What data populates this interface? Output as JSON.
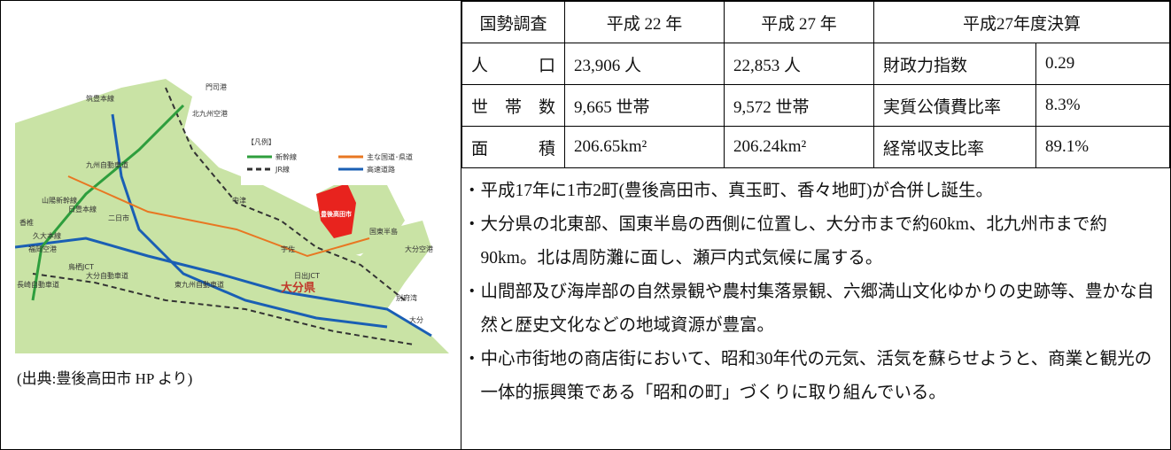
{
  "map": {
    "labels": [
      "大分県",
      "豊後高田市",
      "国東半島",
      "大分空港",
      "北九州空港",
      "門司港",
      "中津",
      "宇佐",
      "日出JCT",
      "別府湾",
      "大分",
      "九州自動車道",
      "大分自動車道",
      "東九州自動車道",
      "日豊本線",
      "久大本線",
      "山陽新幹線",
      "筑豊本線",
      "鳥栖JCT",
      "福岡空港",
      "香椎",
      "二日市",
      "長崎自動車道"
    ],
    "legend_title": "【凡例】",
    "legend": [
      "新幹線",
      "JR線",
      "主な国道･県道",
      "高速道路"
    ]
  },
  "caption": "(出典:豊後高田市 HP より)",
  "table": {
    "header": [
      "国勢調査",
      "平成 22 年",
      "平成 27 年",
      "平成27年度決算"
    ],
    "rows": [
      [
        "人口",
        "23,906 人",
        "22,853 人",
        "財政力指数",
        "0.29"
      ],
      [
        "世帯数",
        "9,665 世帯",
        "9,572 世帯",
        "実質公債費比率",
        "8.3%"
      ],
      [
        "面積",
        "206.65km²",
        "206.24km²",
        "経常収支比率",
        "89.1%"
      ]
    ],
    "notes": [
      "・平成17年に1市2町(豊後高田市、真玉町、香々地町)が合併し誕生。",
      "・大分県の北東部、国東半島の西側に位置し、大分市まで約60km、北九州市まで約90km。北は周防灘に面し、瀬戸内式気候に属する。",
      "・山間部及び海岸部の自然景観や農村集落景観、六郷満山文化ゆかりの史跡等、豊かな自然と歴史文化などの地域資源が豊富。",
      "・中心市街地の商店街において、昭和30年代の元気、活気を蘇らせようと、商業と観光の一体的振興策である「昭和の町」づくりに取り組んでいる。"
    ]
  }
}
